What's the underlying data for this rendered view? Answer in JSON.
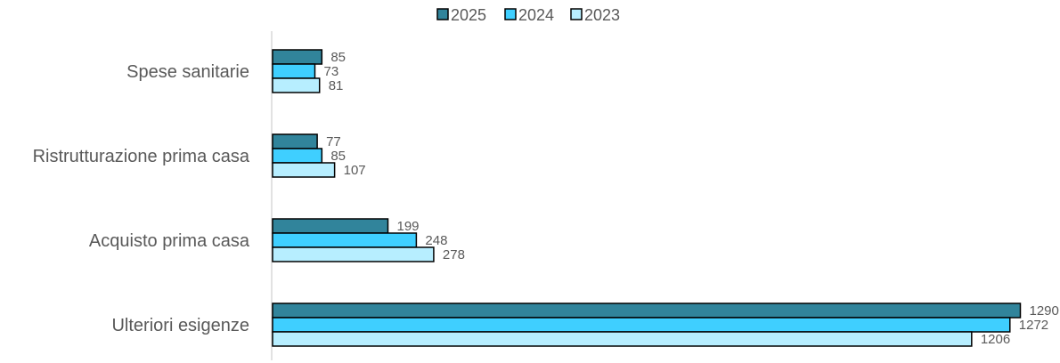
{
  "chart_data": {
    "type": "bar",
    "orientation": "horizontal",
    "categories": [
      "Spese sanitarie",
      "Ristrutturazione prima casa",
      "Acquisto prima casa",
      "Ulteriori esigenze"
    ],
    "series": [
      {
        "name": "2025",
        "values": [
          85,
          77,
          199,
          1290
        ],
        "color": "#31849b"
      },
      {
        "name": "2024",
        "values": [
          73,
          85,
          248,
          1272
        ],
        "color": "#3fcfff"
      },
      {
        "name": "2023",
        "values": [
          81,
          107,
          278,
          1206
        ],
        "color": "#b7eeff"
      }
    ],
    "xlim": [
      0,
      1300
    ],
    "legend": "top-center",
    "grid": false,
    "bar_border_color": "#000000",
    "axis_color": "#d9d9d9"
  }
}
